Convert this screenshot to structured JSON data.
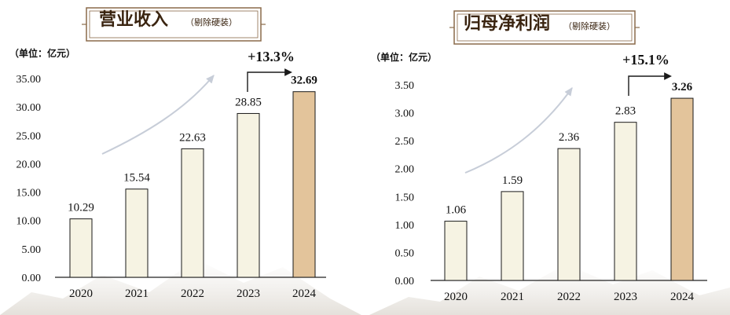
{
  "colors": {
    "bar_normal": "#f6f3e3",
    "bar_highlight": "#e3c49b",
    "bar_stroke": "#1a1a1a",
    "growth_red": "#c0101a",
    "title_text": "#3a2410",
    "frame": "#8a6a4a",
    "curve_arrow": "#c7cdd8"
  },
  "chart_data": [
    {
      "type": "bar",
      "title": "营业收入",
      "title_note": "（剔除硬装）",
      "unit_label": "（单位：亿元）",
      "categories": [
        "2020",
        "2021",
        "2022",
        "2023",
        "2024"
      ],
      "values": [
        10.29,
        15.54,
        22.63,
        28.85,
        32.69
      ],
      "value_labels": [
        "10.29",
        "15.54",
        "22.63",
        "28.85",
        "32.69"
      ],
      "highlight_index": 4,
      "yticks": [
        "0.00",
        "5.00",
        "10.00",
        "15.00",
        "20.00",
        "25.00",
        "30.00",
        "35.00"
      ],
      "ylim": [
        0,
        35
      ],
      "growth_label": "+13.3%",
      "grid": false
    },
    {
      "type": "bar",
      "title": "归母净利润",
      "title_note": "（剔除硬装）",
      "unit_label": "（单位：亿元）",
      "categories": [
        "2020",
        "2021",
        "2022",
        "2023",
        "2024"
      ],
      "values": [
        1.06,
        1.59,
        2.36,
        2.83,
        3.26
      ],
      "value_labels": [
        "1.06",
        "1.59",
        "2.36",
        "2.83",
        "3.26"
      ],
      "highlight_index": 4,
      "yticks": [
        "0.00",
        "0.50",
        "1.00",
        "1.50",
        "2.00",
        "2.50",
        "3.00",
        "3.50"
      ],
      "ylim": [
        0,
        3.5
      ],
      "growth_label": "+15.1%",
      "grid": false
    }
  ]
}
